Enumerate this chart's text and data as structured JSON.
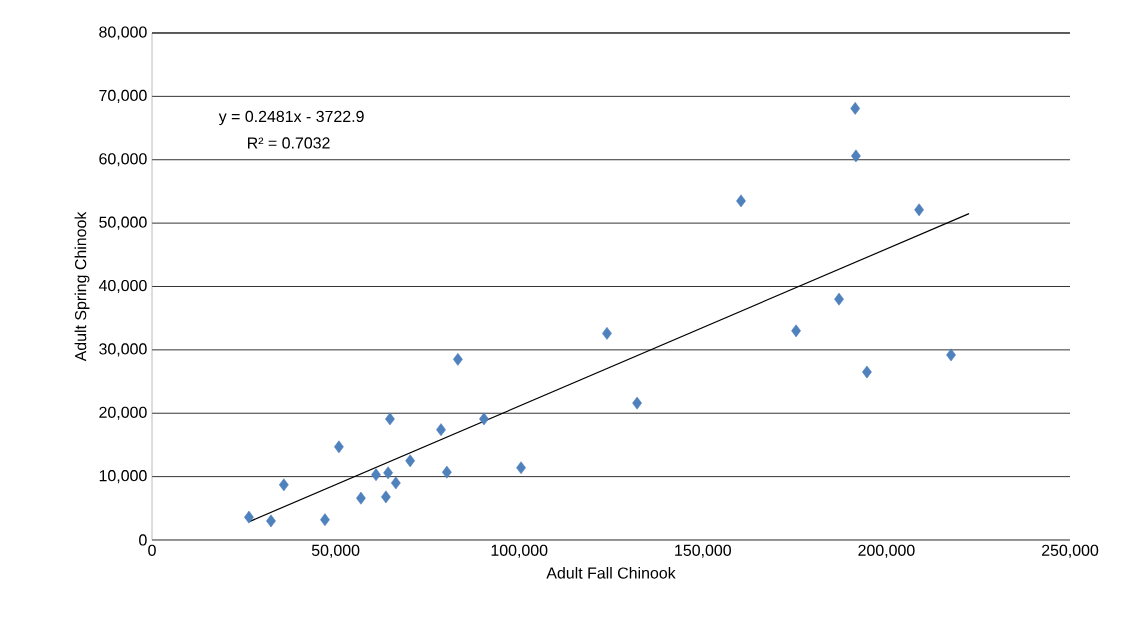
{
  "chart_data": {
    "type": "scatter",
    "xlabel": "Adult Fall Chinook",
    "ylabel": "Adult Spring Chinook",
    "annotations": [
      "y = 0.2481x - 3722.9",
      "R² = 0.7032"
    ],
    "xlim": [
      0,
      250000
    ],
    "ylim": [
      0,
      80000
    ],
    "xticks": [
      0,
      {
        "value": 50000,
        "label": "50,000"
      },
      {
        "value": 100000,
        "label": "100,000"
      },
      {
        "value": 150000,
        "label": "150,000"
      },
      {
        "value": 200000,
        "label": "200,000"
      },
      {
        "value": 250000,
        "label": "250,000"
      }
    ],
    "yticks": [
      0,
      {
        "value": 10000,
        "label": "10,000"
      },
      {
        "value": 20000,
        "label": "20,000"
      },
      {
        "value": 30000,
        "label": "30,000"
      },
      {
        "value": 40000,
        "label": "40,000"
      },
      {
        "value": 50000,
        "label": "50,000"
      },
      {
        "value": 60000,
        "label": "60,000"
      },
      {
        "value": 70000,
        "label": "70,000"
      },
      {
        "value": 80000,
        "label": "80,000"
      }
    ],
    "grid": "y",
    "marker": "diamond",
    "series": [
      {
        "color": "#4f81bd",
        "x": [
          26400,
          32400,
          35900,
          47100,
          50900,
          56900,
          61000,
          63700,
          64300,
          64800,
          66400,
          70300,
          78700,
          80300,
          83300,
          90400,
          100500,
          123900,
          132100,
          160400,
          175400,
          187100,
          191500,
          191700,
          194700,
          208900,
          217600
        ],
        "values": [
          3600,
          3000,
          8700,
          3200,
          14700,
          6600,
          10300,
          6800,
          10600,
          19100,
          9000,
          12500,
          17400,
          10700,
          28500,
          19100,
          11400,
          32600,
          21600,
          53500,
          33000,
          38000,
          68100,
          60600,
          26500,
          52100,
          29200
        ]
      },
      {
        "type": "line",
        "color": "#000000",
        "marker": "none",
        "x": [
          26500,
          222500
        ],
        "values": [
          2900,
          51500
        ]
      }
    ]
  }
}
